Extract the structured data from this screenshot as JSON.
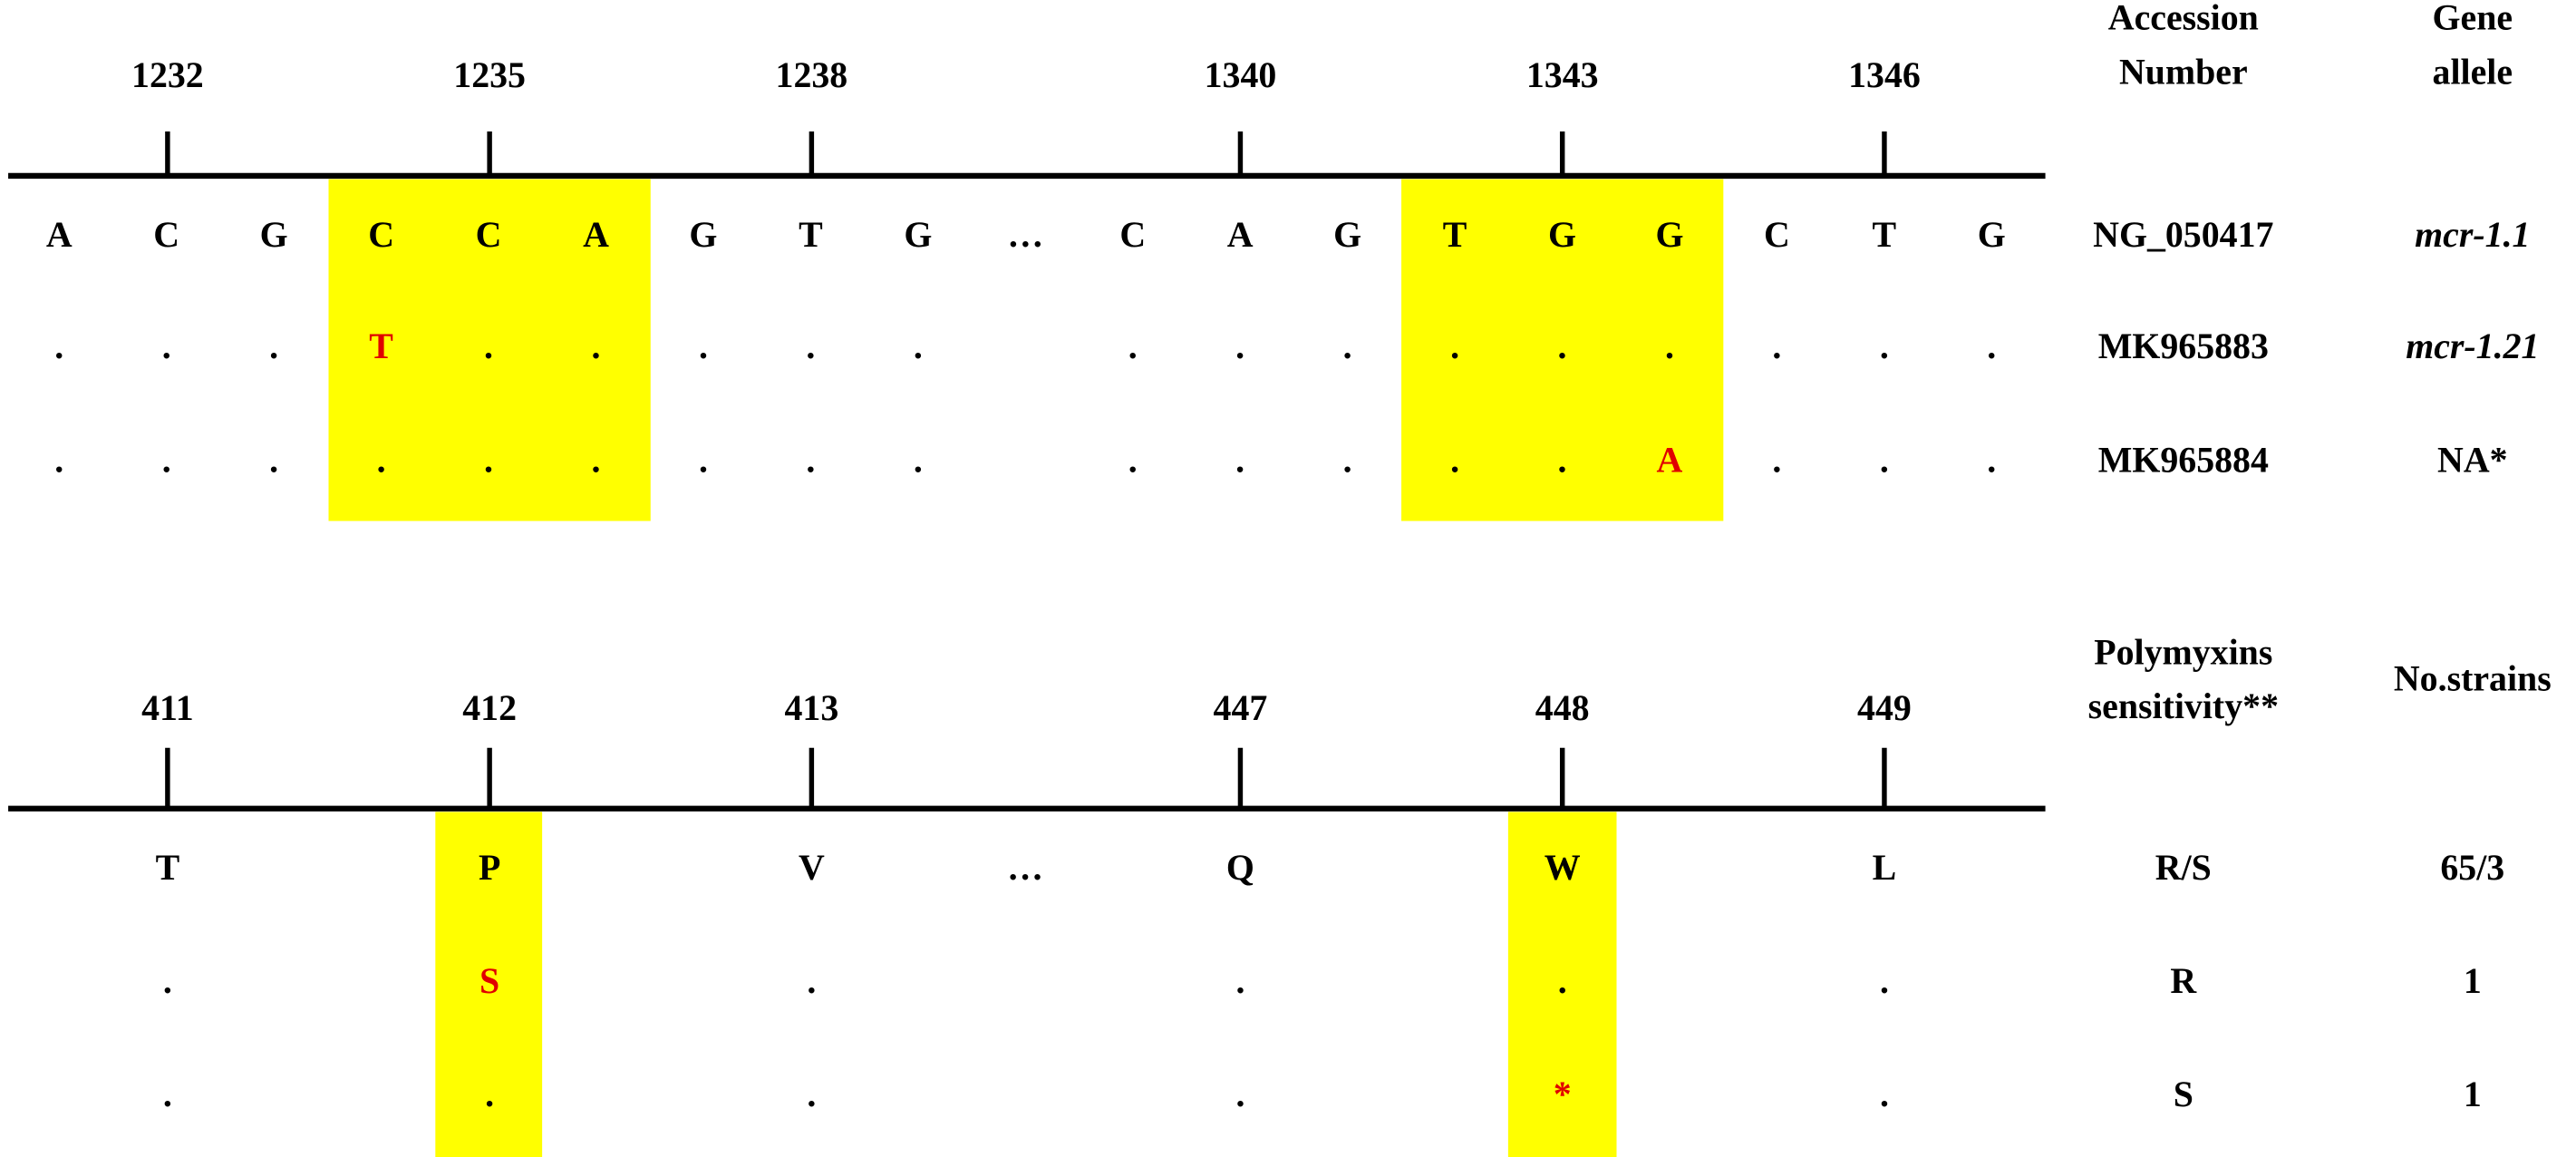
{
  "nucleotide_panel": {
    "positions": [
      "1232",
      "1235",
      "1238",
      "1340",
      "1343",
      "1346"
    ],
    "headers": [
      [
        "Accession",
        "Number"
      ],
      [
        "Gene",
        "allele"
      ]
    ],
    "rows": [
      {
        "cells": [
          "A",
          "C",
          "G",
          "C",
          "C",
          "A",
          "G",
          "T",
          "G",
          "…",
          "C",
          "A",
          "G",
          "T",
          "G",
          "G",
          "C",
          "T",
          "G"
        ],
        "accession": "NG_050417",
        "allele": "mcr-1.1"
      },
      {
        "cells": [
          ".",
          ".",
          ".",
          "T",
          ".",
          ".",
          ".",
          ".",
          ".",
          "",
          ".",
          ".",
          ".",
          ".",
          ".",
          ".",
          ".",
          ".",
          "."
        ],
        "accession": "MK965883",
        "allele": "mcr-1.21"
      },
      {
        "cells": [
          ".",
          ".",
          ".",
          ".",
          ".",
          ".",
          ".",
          ".",
          ".",
          "",
          ".",
          ".",
          ".",
          ".",
          ".",
          "A",
          ".",
          ".",
          "."
        ],
        "accession": "MK965884",
        "allele": "NA*"
      }
    ]
  },
  "protein_panel": {
    "positions": [
      "411",
      "412",
      "413",
      "447",
      "448",
      "449"
    ],
    "headers": [
      [
        "Polymyxins",
        "sensitivity**"
      ],
      [
        "No.strains"
      ]
    ],
    "rows": [
      {
        "cells": [
          "T",
          "P",
          "V",
          "…",
          "Q",
          "W",
          "L"
        ],
        "sensitivity": "R/S",
        "strains": "65/3"
      },
      {
        "cells": [
          ".",
          "S",
          ".",
          "",
          ".",
          ".",
          "."
        ],
        "sensitivity": "R",
        "strains": "1"
      },
      {
        "cells": [
          ".",
          ".",
          ".",
          "",
          ".",
          "*",
          "."
        ],
        "sensitivity": "S",
        "strains": "1"
      }
    ]
  }
}
